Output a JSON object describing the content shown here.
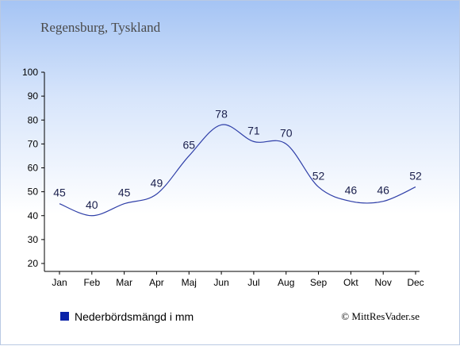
{
  "title": "Regensburg, Tyskland",
  "legend_label": "Nederbördsmängd i mm",
  "credit": "© MittResVader.se",
  "colors": {
    "line": "#2f3fa8",
    "legend_swatch": "#0a23a8",
    "axis": "#000000"
  },
  "chart_data": {
    "type": "line",
    "title": "Regensburg, Tyskland",
    "xlabel": "",
    "ylabel": "",
    "categories": [
      "Jan",
      "Feb",
      "Mar",
      "Apr",
      "Maj",
      "Jun",
      "Jul",
      "Aug",
      "Sep",
      "Okt",
      "Nov",
      "Dec"
    ],
    "series": [
      {
        "name": "Nederbördsmängd i mm",
        "values": [
          45,
          40,
          45,
          49,
          65,
          78,
          71,
          70,
          52,
          46,
          46,
          52
        ]
      }
    ],
    "ylim": [
      20,
      100
    ],
    "yticks": [
      20,
      30,
      40,
      50,
      60,
      70,
      80,
      90,
      100
    ],
    "grid": false,
    "legend": "bottom-left"
  }
}
